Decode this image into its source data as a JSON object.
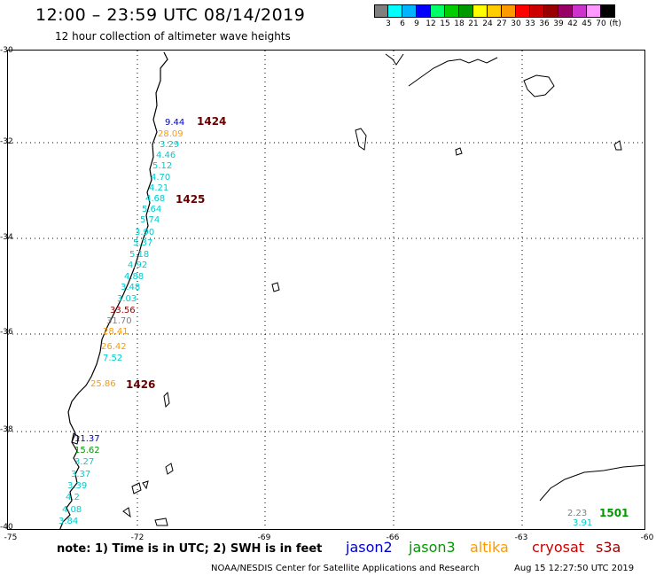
{
  "header": {
    "title": "12:00 – 23:59 UTC 08/14/2019",
    "subtitle": "12 hour collection of altimeter wave heights"
  },
  "scale": {
    "colors": [
      "#7f7f7f",
      "#00ffff",
      "#00b4ff",
      "#0000ff",
      "#00ff66",
      "#00cc00",
      "#009900",
      "#ffff00",
      "#ffcc00",
      "#ff9900",
      "#ff0000",
      "#cc0000",
      "#990000",
      "#990066",
      "#cc33cc",
      "#ff99ff",
      "#000000"
    ],
    "labels": [
      "3",
      "6",
      "9",
      "12",
      "15",
      "18",
      "21",
      "24",
      "27",
      "30",
      "33",
      "36",
      "39",
      "42",
      "45",
      "70",
      "(ft)"
    ]
  },
  "axes": {
    "y_ticks": [
      "-30",
      "-32",
      "-34",
      "-36",
      "-38",
      "-40"
    ],
    "x_ticks": [
      "-75",
      "-72",
      "-69",
      "-66",
      "-63",
      "-60"
    ]
  },
  "observations": [
    {
      "text": "9.44",
      "color": "#0000cc"
    },
    {
      "text": "28.09",
      "color": "#ff9900"
    },
    {
      "text": "3.29",
      "color": "#00cccc"
    },
    {
      "text": "4.46",
      "color": "#00cccc"
    },
    {
      "text": "5.12",
      "color": "#00cccc"
    },
    {
      "text": "4.70",
      "color": "#00cccc"
    },
    {
      "text": "4.21",
      "color": "#00cccc"
    },
    {
      "text": "4.68",
      "color": "#00cccc"
    },
    {
      "text": "5.64",
      "color": "#00cccc"
    },
    {
      "text": "5.74",
      "color": "#00cccc"
    },
    {
      "text": "3.90",
      "color": "#00cccc"
    },
    {
      "text": "5.37",
      "color": "#00cccc"
    },
    {
      "text": "5.18",
      "color": "#00cccc"
    },
    {
      "text": "4.92",
      "color": "#00cccc"
    },
    {
      "text": "4.88",
      "color": "#00cccc"
    },
    {
      "text": "3.48",
      "color": "#00cccc"
    },
    {
      "text": "3.03",
      "color": "#00cccc"
    },
    {
      "text": "33.56",
      "color": "#990000"
    },
    {
      "text": "31.70",
      "color": "#808080"
    },
    {
      "text": "28.41",
      "color": "#ff9900"
    },
    {
      "text": "26.42",
      "color": "#ff9900"
    },
    {
      "text": "7.52",
      "color": "#00cccc"
    },
    {
      "text": "25.86",
      "color": "#ff9900"
    },
    {
      "text": "11.37",
      "color": "#0000cc"
    },
    {
      "text": "15.62",
      "color": "#009900"
    },
    {
      "text": "3.27",
      "color": "#00cccc"
    },
    {
      "text": "3.37",
      "color": "#00cccc"
    },
    {
      "text": "3.39",
      "color": "#00cccc"
    },
    {
      "text": "4.2",
      "color": "#00cccc"
    },
    {
      "text": "4.08",
      "color": "#00cccc"
    },
    {
      "text": "3.84",
      "color": "#00cccc"
    },
    {
      "text": "2.23",
      "color": "#808080"
    },
    {
      "text": "3.91",
      "color": "#00cccc"
    }
  ],
  "passes": [
    {
      "text": "1424",
      "color": "#660000"
    },
    {
      "text": "1425",
      "color": "#660000"
    },
    {
      "text": "1426",
      "color": "#660000"
    },
    {
      "text": "1501",
      "color": "#009900"
    }
  ],
  "note": "note:  1) Time is in UTC;  2) SWH is in feet",
  "legend": [
    {
      "label": "jason2",
      "color": "#0000cc"
    },
    {
      "label": "jason3",
      "color": "#009900"
    },
    {
      "label": "altika",
      "color": "#ff9900"
    },
    {
      "label": "cryosat",
      "color": "#cc0000"
    },
    {
      "label": "s3a",
      "color": "#990000"
    }
  ],
  "footer": {
    "credit": "NOAA/NESDIS Center for Satellite Applications and Research",
    "timestamp": "Aug 15 12:27:50 UTC 2019"
  }
}
